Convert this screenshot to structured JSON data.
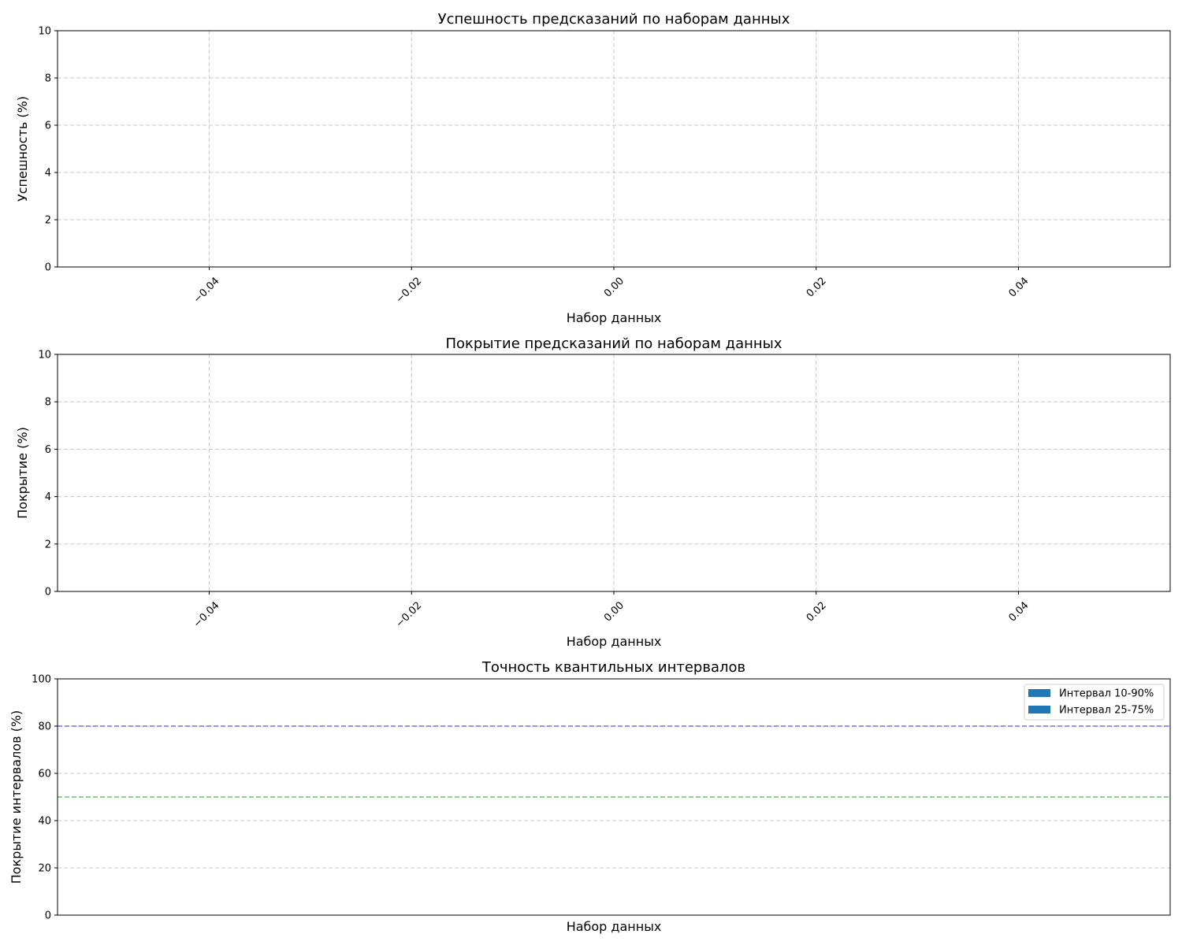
{
  "chart_data": [
    {
      "type": "bar",
      "title": "Успешность предсказаний по наборам данных",
      "xlabel": "Набор данных",
      "ylabel": "Успешность (%)",
      "xlim": [
        -0.055,
        0.055
      ],
      "ylim": [
        0,
        10
      ],
      "xticks": [
        -0.04,
        -0.02,
        0.0,
        0.02,
        0.04
      ],
      "xtick_labels": [
        "−0.04",
        "−0.02",
        "0.00",
        "0.02",
        "0.04"
      ],
      "xtick_rotation": 45,
      "yticks": [
        0,
        2,
        4,
        6,
        8,
        10
      ],
      "ytick_labels": [
        "0",
        "2",
        "4",
        "6",
        "8",
        "10"
      ],
      "grid": true,
      "categories": [],
      "values": []
    },
    {
      "type": "bar",
      "title": "Покрытие предсказаний по наборам данных",
      "xlabel": "Набор данных",
      "ylabel": "Покрытие (%)",
      "xlim": [
        -0.055,
        0.055
      ],
      "ylim": [
        0,
        10
      ],
      "xticks": [
        -0.04,
        -0.02,
        0.0,
        0.02,
        0.04
      ],
      "xtick_labels": [
        "−0.04",
        "−0.02",
        "0.00",
        "0.02",
        "0.04"
      ],
      "xtick_rotation": 45,
      "yticks": [
        0,
        2,
        4,
        6,
        8,
        10
      ],
      "ytick_labels": [
        "0",
        "2",
        "4",
        "6",
        "8",
        "10"
      ],
      "grid": true,
      "categories": [],
      "values": []
    },
    {
      "type": "bar",
      "title": "Точность квантильных интервалов",
      "xlabel": "Набор данных",
      "ylabel": "Покрытие интервалов (%)",
      "ylim": [
        0,
        100
      ],
      "xticks": [],
      "xtick_labels": [],
      "yticks": [
        0,
        20,
        40,
        60,
        80,
        100
      ],
      "ytick_labels": [
        "0",
        "20",
        "40",
        "60",
        "80",
        "100"
      ],
      "grid": true,
      "grid_axis": "y",
      "legend_position": "top-right",
      "categories": [],
      "series": [
        {
          "name": "Интервал 10-90%",
          "color": "#1f77b4",
          "values": []
        },
        {
          "name": "Интервал 25-75%",
          "color": "#1f77b4",
          "values": []
        }
      ],
      "reference_lines": [
        {
          "y": 80,
          "color": "#7b68ee"
        },
        {
          "y": 50,
          "color": "#6fbf6f"
        }
      ]
    }
  ]
}
